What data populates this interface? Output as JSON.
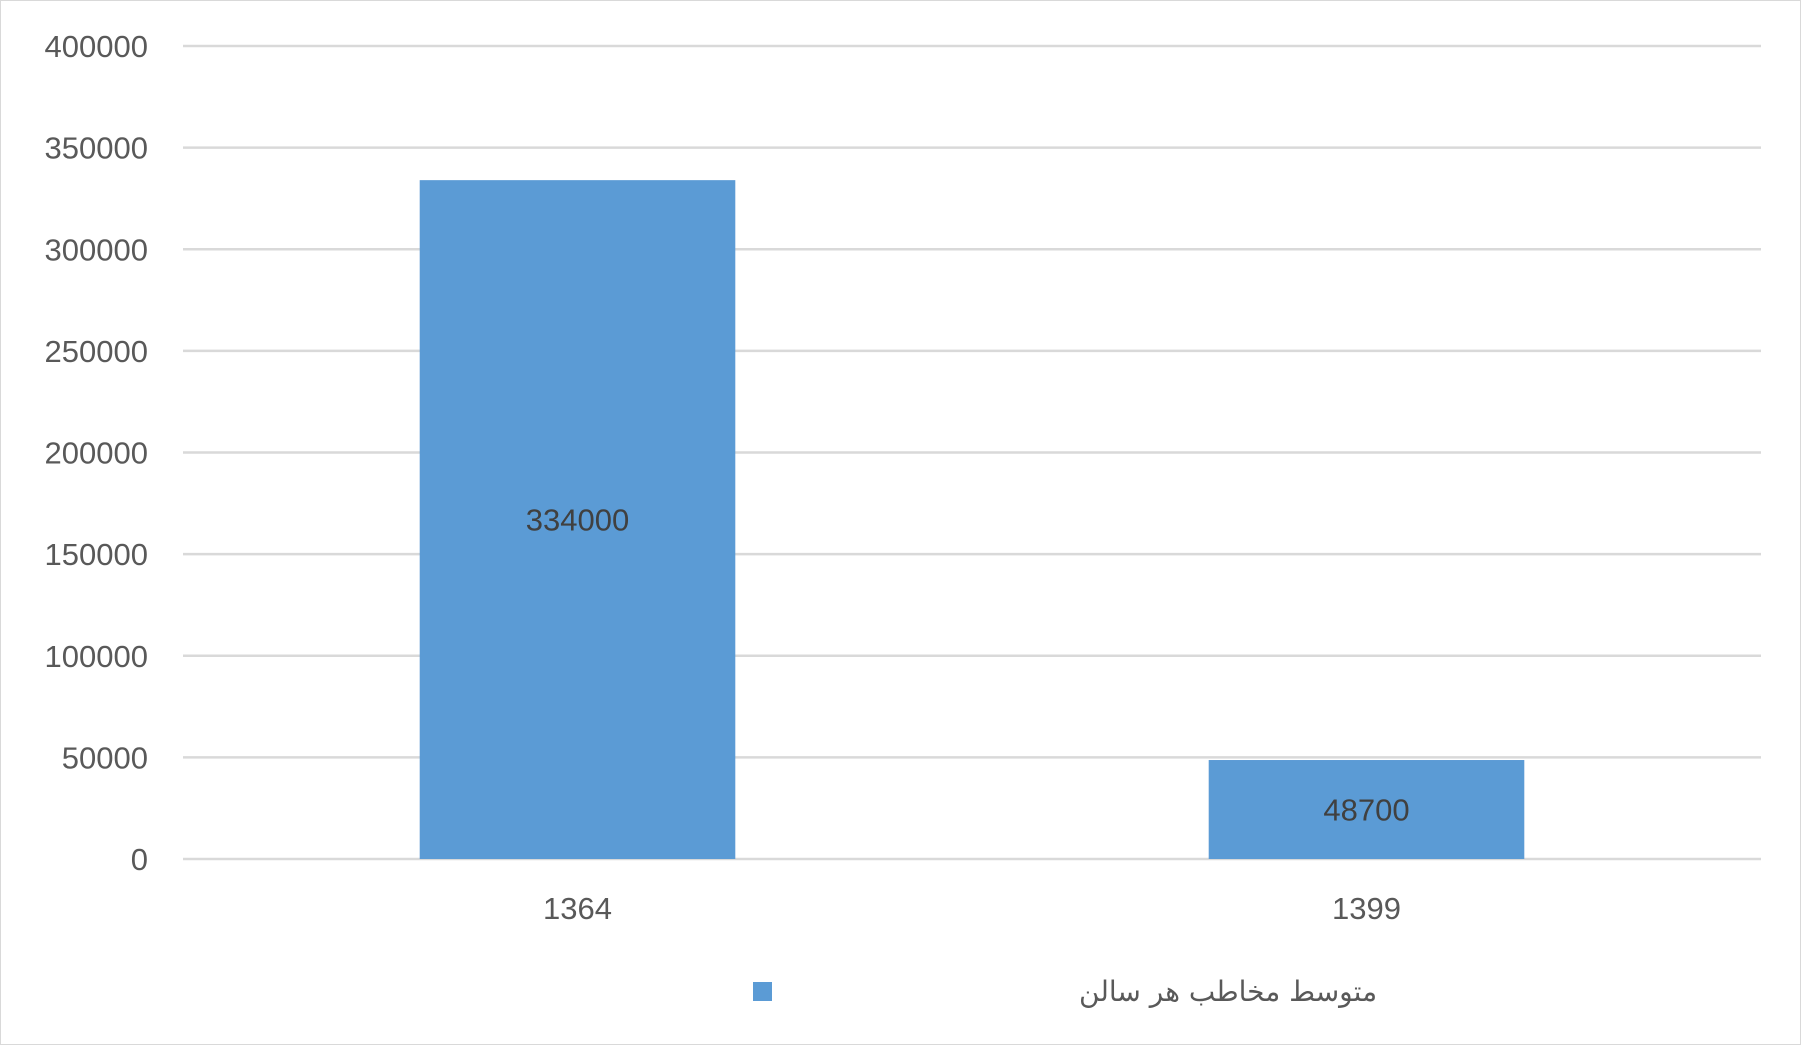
{
  "chart_data": {
    "type": "bar",
    "categories": [
      "1364",
      "1399"
    ],
    "series": [
      {
        "name": "متوسط مخاطب هر سالن",
        "values": [
          334000,
          48700
        ],
        "data_labels": [
          "334000",
          "48700"
        ],
        "color": "#5b9bd5"
      }
    ],
    "title": "",
    "xlabel": "",
    "ylabel": "",
    "ylim": [
      0,
      400000
    ],
    "yticks": [
      "0",
      "50000",
      "100000",
      "150000",
      "200000",
      "250000",
      "300000",
      "350000",
      "400000"
    ],
    "grid": true,
    "legend_position": "bottom",
    "colors": {
      "bar": "#5b9bd5",
      "gridline": "#d9d9d9",
      "text": "#595959",
      "data_label": "#404040"
    }
  }
}
